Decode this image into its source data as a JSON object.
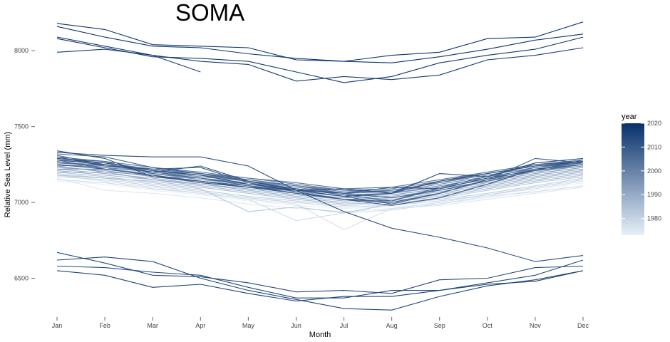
{
  "chart_data": {
    "type": "line",
    "title": "SOMA",
    "xlabel": "Month",
    "ylabel": "Relative Sea Level (mm)",
    "categories": [
      "Jan",
      "Feb",
      "Mar",
      "Apr",
      "May",
      "Jun",
      "Jul",
      "Aug",
      "Sep",
      "Oct",
      "Nov",
      "Dec"
    ],
    "ylim": [
      6230,
      8250
    ],
    "yticks": [
      6500,
      7000,
      7500,
      8000
    ],
    "ytick_labels": [
      "6500",
      "7000",
      "7500",
      "8000"
    ],
    "grid": false,
    "legend": {
      "title": "year",
      "type": "colorbar",
      "position": "right",
      "ticks": [
        1980,
        1990,
        2000,
        2010,
        2020
      ],
      "range": [
        1973,
        2020
      ],
      "color_low": "#e6f0f9",
      "color_high": "#08306b"
    },
    "series": [
      {
        "year": 1973,
        "values": [
          7140,
          7120,
          7080,
          7050,
          7010,
          6980,
          6960,
          6970,
          6990,
          7030,
          7080,
          7130
        ]
      },
      {
        "year": 1975,
        "values": [
          7160,
          7080,
          7060,
          7030,
          6990,
          6960,
          6940,
          6960,
          6980,
          7020,
          7060,
          7100
        ]
      },
      {
        "year": 1977,
        "values": [
          7180,
          7140,
          7100,
          7060,
          7020,
          6990,
          6820,
          6960,
          7000,
          7050,
          7090,
          7140
        ]
      },
      {
        "year": 1978,
        "values": [
          7150,
          7130,
          7090,
          7060,
          7020,
          6880,
          6930,
          6950,
          6990,
          7040,
          7070,
          7110
        ]
      },
      {
        "year": 1980,
        "values": [
          7170,
          7150,
          7110,
          7070,
          7030,
          7000,
          6970,
          6980,
          7010,
          7050,
          7100,
          7150
        ]
      },
      {
        "year": 1981,
        "values": [
          7190,
          7160,
          7120,
          7080,
          7040,
          7010,
          6980,
          6990,
          7020,
          7060,
          7110,
          7160
        ]
      },
      {
        "year": 1983,
        "values": [
          7200,
          7170,
          7130,
          7090,
          6940,
          6970,
          6930,
          6990,
          7030,
          7080,
          7130,
          7170
        ]
      },
      {
        "year": 1985,
        "values": [
          7180,
          7160,
          7140,
          7100,
          7060,
          7020,
          6990,
          7000,
          7040,
          7090,
          7140,
          7180
        ]
      },
      {
        "year": 1986,
        "values": [
          7210,
          7180,
          7150,
          7110,
          7070,
          7030,
          7000,
          7010,
          7050,
          7100,
          7150,
          7190
        ]
      },
      {
        "year": 1988,
        "values": [
          7220,
          7190,
          7160,
          7120,
          7080,
          7040,
          7010,
          7020,
          7060,
          7110,
          7160,
          7200
        ]
      },
      {
        "year": 1990,
        "values": [
          7200,
          7200,
          7150,
          7120,
          7090,
          7050,
          7020,
          7030,
          7070,
          7120,
          7170,
          7210
        ]
      },
      {
        "year": 1991,
        "values": [
          7230,
          7210,
          7170,
          7130,
          7100,
          7060,
          7030,
          7040,
          7080,
          7130,
          7180,
          7220
        ]
      },
      {
        "year": 1993,
        "values": [
          7240,
          7200,
          7180,
          7140,
          7110,
          7070,
          7040,
          7050,
          7090,
          7140,
          7190,
          7230
        ]
      },
      {
        "year": 1995,
        "values": [
          7220,
          7220,
          7190,
          7150,
          7120,
          7080,
          7040,
          7060,
          7100,
          7150,
          7200,
          7240
        ]
      },
      {
        "year": 1996,
        "values": [
          7250,
          7230,
          7170,
          7160,
          7130,
          7090,
          7050,
          7060,
          7110,
          7160,
          7210,
          7240
        ]
      },
      {
        "year": 1998,
        "values": [
          7260,
          7240,
          7200,
          7170,
          7140,
          7100,
          7060,
          7070,
          7120,
          7170,
          7220,
          7250
        ]
      },
      {
        "year": 2000,
        "values": [
          7240,
          7250,
          7210,
          7180,
          7150,
          7110,
          7070,
          7080,
          7130,
          7180,
          7230,
          7260
        ]
      },
      {
        "year": 2001,
        "values": [
          7270,
          7230,
          7200,
          7180,
          7140,
          7110,
          7080,
          7090,
          7140,
          7190,
          7240,
          7270
        ]
      },
      {
        "year": 2002,
        "values": [
          7280,
          7260,
          7220,
          7190,
          7160,
          7120,
          7080,
          7070,
          7140,
          7200,
          7250,
          7270
        ]
      },
      {
        "year": 2003,
        "values": [
          7300,
          7270,
          7230,
          7200,
          7160,
          7130,
          7090,
          7100,
          7150,
          7200,
          7250,
          7280
        ]
      },
      {
        "year": 2004,
        "values": [
          7260,
          7250,
          7210,
          7190,
          7150,
          7110,
          7060,
          7080,
          7130,
          7190,
          7240,
          7260
        ]
      },
      {
        "year": 2005,
        "values": [
          7310,
          7250,
          7200,
          7160,
          7110,
          7060,
          7020,
          7010,
          7090,
          7160,
          7230,
          7270
        ]
      },
      {
        "year": 2006,
        "values": [
          7280,
          7220,
          7180,
          7140,
          7110,
          7080,
          7040,
          6990,
          7060,
          7150,
          7220,
          7260
        ]
      },
      {
        "year": 2007,
        "values": [
          7290,
          7270,
          7190,
          7160,
          7120,
          7090,
          7060,
          7030,
          7080,
          7140,
          7210,
          7250
        ]
      },
      {
        "year": 2008,
        "values": [
          7320,
          7300,
          7230,
          7190,
          7140,
          7090,
          7050,
          7010,
          7100,
          7170,
          7250,
          7270
        ]
      },
      {
        "year": 2009,
        "values": [
          7300,
          7240,
          7220,
          7230,
          7130,
          7070,
          7020,
          7000,
          7060,
          7150,
          7290,
          7260
        ]
      },
      {
        "year": 2010,
        "values": [
          7250,
          7220,
          7180,
          7130,
          7100,
          7060,
          7020,
          6980,
          7030,
          7120,
          7220,
          7250
        ]
      },
      {
        "year": 2011,
        "values": [
          7340,
          7290,
          7170,
          7140,
          7100,
          7080,
          7060,
          7100,
          7090,
          7160,
          7210,
          7280
        ]
      },
      {
        "year": 2012,
        "values": [
          7280,
          7250,
          7200,
          7240,
          7140,
          7080,
          7090,
          7060,
          7140,
          7190,
          7240,
          7270
        ]
      },
      {
        "year": 2013,
        "values": [
          7330,
          7310,
          7300,
          7300,
          7240,
          7080,
          7040,
          7060,
          7190,
          7170,
          7260,
          7290
        ]
      },
      {
        "year": 2013,
        "values": [
          7290,
          7260,
          7210,
          7180,
          7120,
          7080,
          6940,
          6830,
          6770,
          6700,
          6610,
          6650
        ]
      },
      {
        "year": 2014,
        "values": [
          6670,
          6600,
          6520,
          6510,
          6470,
          6410,
          6420,
          6400,
          6490,
          6500,
          6570,
          6580
        ]
      },
      {
        "year": 2014,
        "values": [
          6580,
          6570,
          6540,
          6520,
          6440,
          6370,
          6370,
          6420,
          6420,
          6470,
          6520,
          6620
        ]
      },
      {
        "year": 2015,
        "values": [
          6620,
          6640,
          6610,
          6500,
          6420,
          6360,
          6300,
          6290,
          6380,
          6450,
          6490,
          6550
        ]
      },
      {
        "year": 2016,
        "values": [
          6550,
          6520,
          6440,
          6460,
          6400,
          6350,
          6380,
          6380,
          6420,
          6460,
          6480,
          6550
        ]
      },
      {
        "year": 2017,
        "values": [
          7990,
          8010,
          7970,
          7930,
          7910,
          7800,
          7830,
          7810,
          7840,
          7940,
          7970,
          8020
        ]
      },
      {
        "year": 2017,
        "values": [
          8090,
          8030,
          7970,
          7860,
          null,
          null,
          null,
          null,
          null,
          null,
          null,
          null
        ]
      },
      {
        "year": 2018,
        "values": [
          8080,
          8020,
          7960,
          7950,
          7930,
          7860,
          7790,
          7830,
          7920,
          7970,
          8010,
          8090
        ]
      },
      {
        "year": 2019,
        "values": [
          8160,
          8090,
          8030,
          8020,
          7980,
          7950,
          7930,
          7970,
          7990,
          8080,
          8090,
          8190
        ]
      },
      {
        "year": 2019,
        "values": [
          8180,
          8140,
          8040,
          8030,
          8020,
          7940,
          7930,
          7920,
          7960,
          8010,
          8070,
          8110
        ]
      }
    ]
  }
}
